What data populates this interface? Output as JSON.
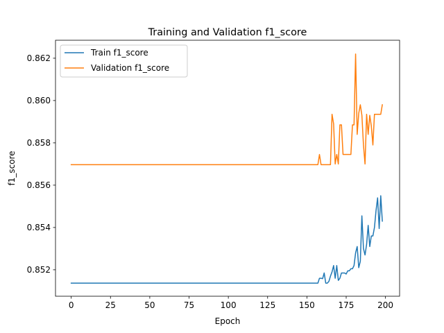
{
  "chart_data": {
    "type": "line",
    "title": "Training and Validation f1_score",
    "xlabel": "Epoch",
    "ylabel": "f1_score",
    "xlim": [
      -10,
      209
    ],
    "ylim": [
      0.85075,
      0.86285
    ],
    "xticks": [
      0,
      25,
      50,
      75,
      100,
      125,
      150,
      175,
      200
    ],
    "yticks": [
      0.852,
      0.854,
      0.856,
      0.858,
      0.86,
      0.862
    ],
    "ytick_labels": [
      "0.852",
      "0.854",
      "0.856",
      "0.858",
      "0.860",
      "0.862"
    ],
    "grid": false,
    "legend_position": "top-left",
    "series": [
      {
        "name": "Train f1_score",
        "color": "#1f77b4",
        "points": [
          [
            0,
            0.85137
          ],
          [
            157,
            0.85137
          ],
          [
            158,
            0.8516
          ],
          [
            159,
            0.8516
          ],
          [
            160,
            0.85158
          ],
          [
            161,
            0.85185
          ],
          [
            162,
            0.85137
          ],
          [
            163,
            0.85137
          ],
          [
            164,
            0.85145
          ],
          [
            165,
            0.8517
          ],
          [
            166,
            0.8519
          ],
          [
            167,
            0.8522
          ],
          [
            168,
            0.8516
          ],
          [
            169,
            0.8522
          ],
          [
            170,
            0.8515
          ],
          [
            171,
            0.8516
          ],
          [
            172,
            0.85185
          ],
          [
            173,
            0.85185
          ],
          [
            174,
            0.85185
          ],
          [
            175,
            0.8518
          ],
          [
            176,
            0.85195
          ],
          [
            177,
            0.85195
          ],
          [
            178,
            0.85205
          ],
          [
            179,
            0.85205
          ],
          [
            180,
            0.8522
          ],
          [
            181,
            0.8528
          ],
          [
            182,
            0.8531
          ],
          [
            183,
            0.8521
          ],
          [
            184,
            0.8524
          ],
          [
            185,
            0.85455
          ],
          [
            186,
            0.853
          ],
          [
            187,
            0.8527
          ],
          [
            188,
            0.8532
          ],
          [
            189,
            0.8541
          ],
          [
            190,
            0.8531
          ],
          [
            191,
            0.8536
          ],
          [
            192,
            0.8536
          ],
          [
            193,
            0.854
          ],
          [
            194,
            0.8548
          ],
          [
            195,
            0.8554
          ],
          [
            196,
            0.85395
          ],
          [
            197,
            0.8555
          ],
          [
            198,
            0.8543
          ]
        ]
      },
      {
        "name": "Validation f1_score",
        "color": "#ff7f0e",
        "points": [
          [
            0,
            0.85697
          ],
          [
            157,
            0.85697
          ],
          [
            158,
            0.85745
          ],
          [
            159,
            0.85697
          ],
          [
            160,
            0.85697
          ],
          [
            161,
            0.85697
          ],
          [
            162,
            0.85697
          ],
          [
            163,
            0.85697
          ],
          [
            164,
            0.85697
          ],
          [
            165,
            0.85697
          ],
          [
            166,
            0.85935
          ],
          [
            167,
            0.8589
          ],
          [
            168,
            0.857
          ],
          [
            169,
            0.85745
          ],
          [
            170,
            0.857
          ],
          [
            171,
            0.85885
          ],
          [
            172,
            0.85885
          ],
          [
            173,
            0.85745
          ],
          [
            174,
            0.85745
          ],
          [
            175,
            0.85745
          ],
          [
            176,
            0.85745
          ],
          [
            177,
            0.85745
          ],
          [
            178,
            0.85745
          ],
          [
            179,
            0.85885
          ],
          [
            180,
            0.85885
          ],
          [
            181,
            0.8622
          ],
          [
            182,
            0.8584
          ],
          [
            183,
            0.8594
          ],
          [
            184,
            0.8598
          ],
          [
            185,
            0.8593
          ],
          [
            186,
            0.8579
          ],
          [
            187,
            0.857
          ],
          [
            188,
            0.85935
          ],
          [
            189,
            0.8584
          ],
          [
            190,
            0.8593
          ],
          [
            191,
            0.8588
          ],
          [
            192,
            0.8579
          ],
          [
            193,
            0.85935
          ],
          [
            194,
            0.85935
          ],
          [
            195,
            0.85935
          ],
          [
            196,
            0.85935
          ],
          [
            197,
            0.85935
          ],
          [
            198,
            0.8598
          ]
        ]
      }
    ]
  }
}
